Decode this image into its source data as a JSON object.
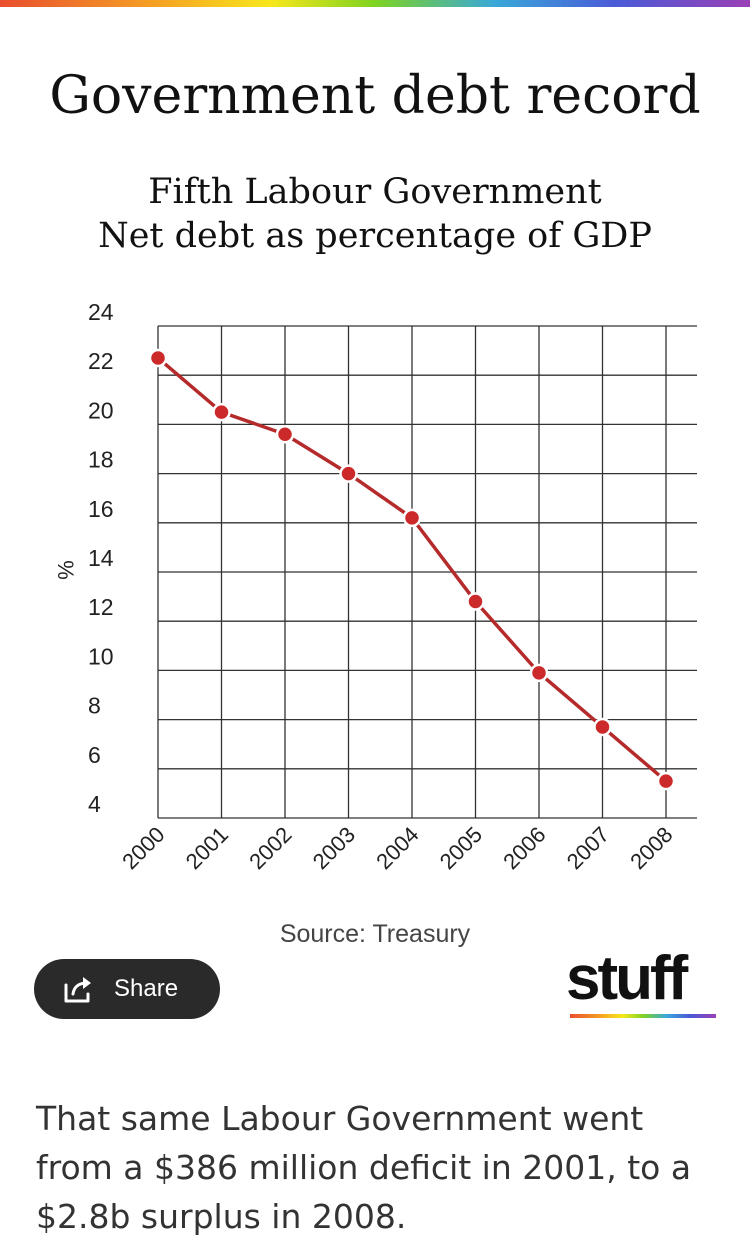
{
  "header": {
    "title": "Government debt record"
  },
  "chart_data": {
    "type": "line",
    "title": "Fifth Labour Government",
    "subtitle": "Net debt as percentage of GDP",
    "xlabel": "",
    "ylabel": "%",
    "categories": [
      "2000",
      "2001",
      "2002",
      "2003",
      "2004",
      "2005",
      "2006",
      "2007",
      "2008"
    ],
    "series": [
      {
        "name": "Net debt as percentage of GDP",
        "values": [
          22.7,
          20.5,
          19.6,
          18.0,
          16.2,
          12.8,
          9.9,
          7.7,
          5.5
        ]
      }
    ],
    "yticks": [
      "4",
      "6",
      "8",
      "10",
      "12",
      "14",
      "16",
      "18",
      "20",
      "22",
      "24"
    ],
    "ylim": [
      4,
      24
    ],
    "grid": true,
    "colors": {
      "line": "#b52a2a",
      "marker": "#cc2a2a",
      "grid": "#333333"
    }
  },
  "source": "Source: Treasury",
  "share": {
    "label": "Share",
    "icon": "share-icon"
  },
  "brand": {
    "name": "stuff"
  },
  "article": {
    "text": "That same Labour Government went from a $386 million deficit in 2001, to a $2.8b surplus in 2008."
  }
}
